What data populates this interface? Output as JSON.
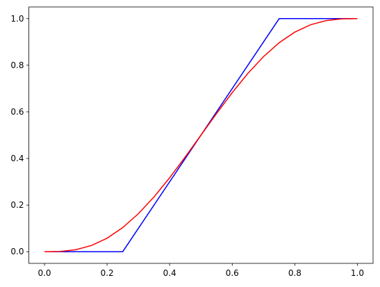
{
  "chart_data": {
    "type": "line",
    "series": [
      {
        "color": "#0000ff",
        "x": [
          0,
          0.25,
          0.75,
          1
        ],
        "values": [
          0,
          0,
          1,
          1
        ]
      },
      {
        "color": "#ff0000",
        "x": [
          0,
          0.05,
          0.1,
          0.15,
          0.2,
          0.25,
          0.3,
          0.35,
          0.4,
          0.45,
          0.5,
          0.55,
          0.6,
          0.65,
          0.7,
          0.75,
          0.8,
          0.85,
          0.9,
          0.95,
          1
        ],
        "values": [
          0,
          0.00116,
          0.00856,
          0.02661,
          0.05792,
          0.10352,
          0.16308,
          0.23517,
          0.31744,
          0.40687,
          0.5,
          0.59313,
          0.68256,
          0.76483,
          0.83692,
          0.89648,
          0.94208,
          0.97339,
          0.99144,
          0.99884,
          1
        ]
      }
    ],
    "xlim": [
      -0.05,
      1.05
    ],
    "ylim": [
      -0.05,
      1.05
    ],
    "xticks": [
      {
        "value": 0,
        "label": "0.0"
      },
      0.2,
      0.4,
      0.6,
      0.8,
      {
        "value": 1,
        "label": "1.0"
      }
    ],
    "yticks": [
      {
        "value": 0,
        "label": "0.0"
      },
      0.2,
      0.4,
      0.6,
      0.8,
      {
        "value": 1,
        "label": "1.0"
      }
    ]
  }
}
